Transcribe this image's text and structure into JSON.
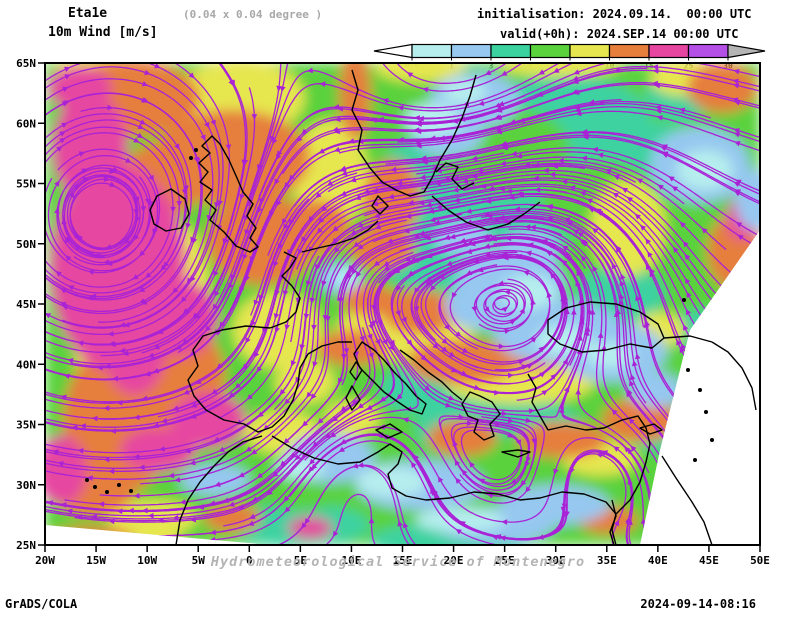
{
  "header": {
    "model": "Eta1e",
    "resolution": "(0.04 x 0.04 degree )",
    "field": "10m Wind [m/s]",
    "init": "initialisation: 2024.09.14.  00:00 UTC",
    "valid": "valid(+0h): 2024.SEP.14 00:00 UTC"
  },
  "legend": {
    "levels": [
      "0.5",
      "1",
      "3",
      "5",
      "7",
      "10",
      "15",
      "25",
      "30"
    ],
    "colors": [
      "#b6eeee",
      "#96c8f0",
      "#3cd2a0",
      "#5ad23c",
      "#e6e650",
      "#e67e3c",
      "#e646a0",
      "#b450e6"
    ],
    "below_color": "#ffffff",
    "above_color": "#b4b4b4"
  },
  "map": {
    "x_tick_labels": [
      "20W",
      "15W",
      "10W",
      "5W",
      "0",
      "5E",
      "10E",
      "15E",
      "20E",
      "25E",
      "30E",
      "35E",
      "40E",
      "45E",
      "50E"
    ],
    "y_tick_labels": [
      "65N",
      "60N",
      "55N",
      "50N",
      "45N",
      "40N",
      "35N",
      "30N",
      "25N"
    ],
    "watermark": "Hydrometeorological Service of Montenegro",
    "streamline_color": "#a922d6",
    "coastline_color": "#000000",
    "frame_color": "#000000"
  },
  "footer": {
    "left": "GrADS/COLA",
    "right": "2024-09-14-08:16"
  }
}
